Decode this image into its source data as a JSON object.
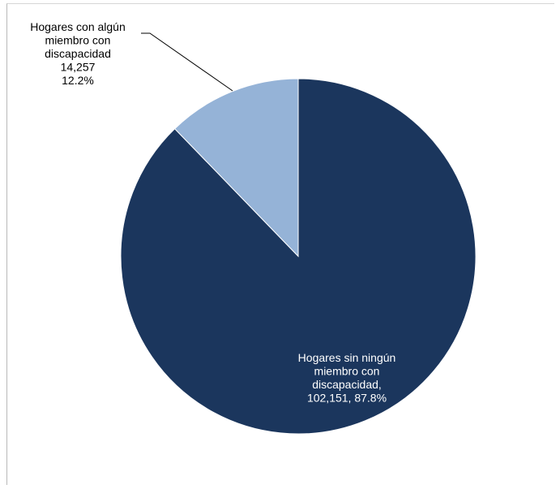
{
  "chart_data": {
    "type": "pie",
    "slices": [
      {
        "name": "Hogares sin ningún miembro con discapacidad",
        "value": 102151,
        "percent": 87.8,
        "color": "#1b365d",
        "label_lines": [
          "Hogares sin ningún",
          "miembro con",
          "discapacidad,",
          "102,151, 87.8%"
        ],
        "label_color": "#ffffff"
      },
      {
        "name": "Hogares con algún miembro con discapacidad",
        "value": 14257,
        "percent": 12.2,
        "color": "#95b3d7",
        "label_lines": [
          "Hogares con algún",
          "miembro con",
          "discapacidad",
          "14,257",
          "12.2%"
        ],
        "label_color": "#000000"
      }
    ],
    "start_angle_deg": 0,
    "direction": "clockwise",
    "legend": "none"
  }
}
